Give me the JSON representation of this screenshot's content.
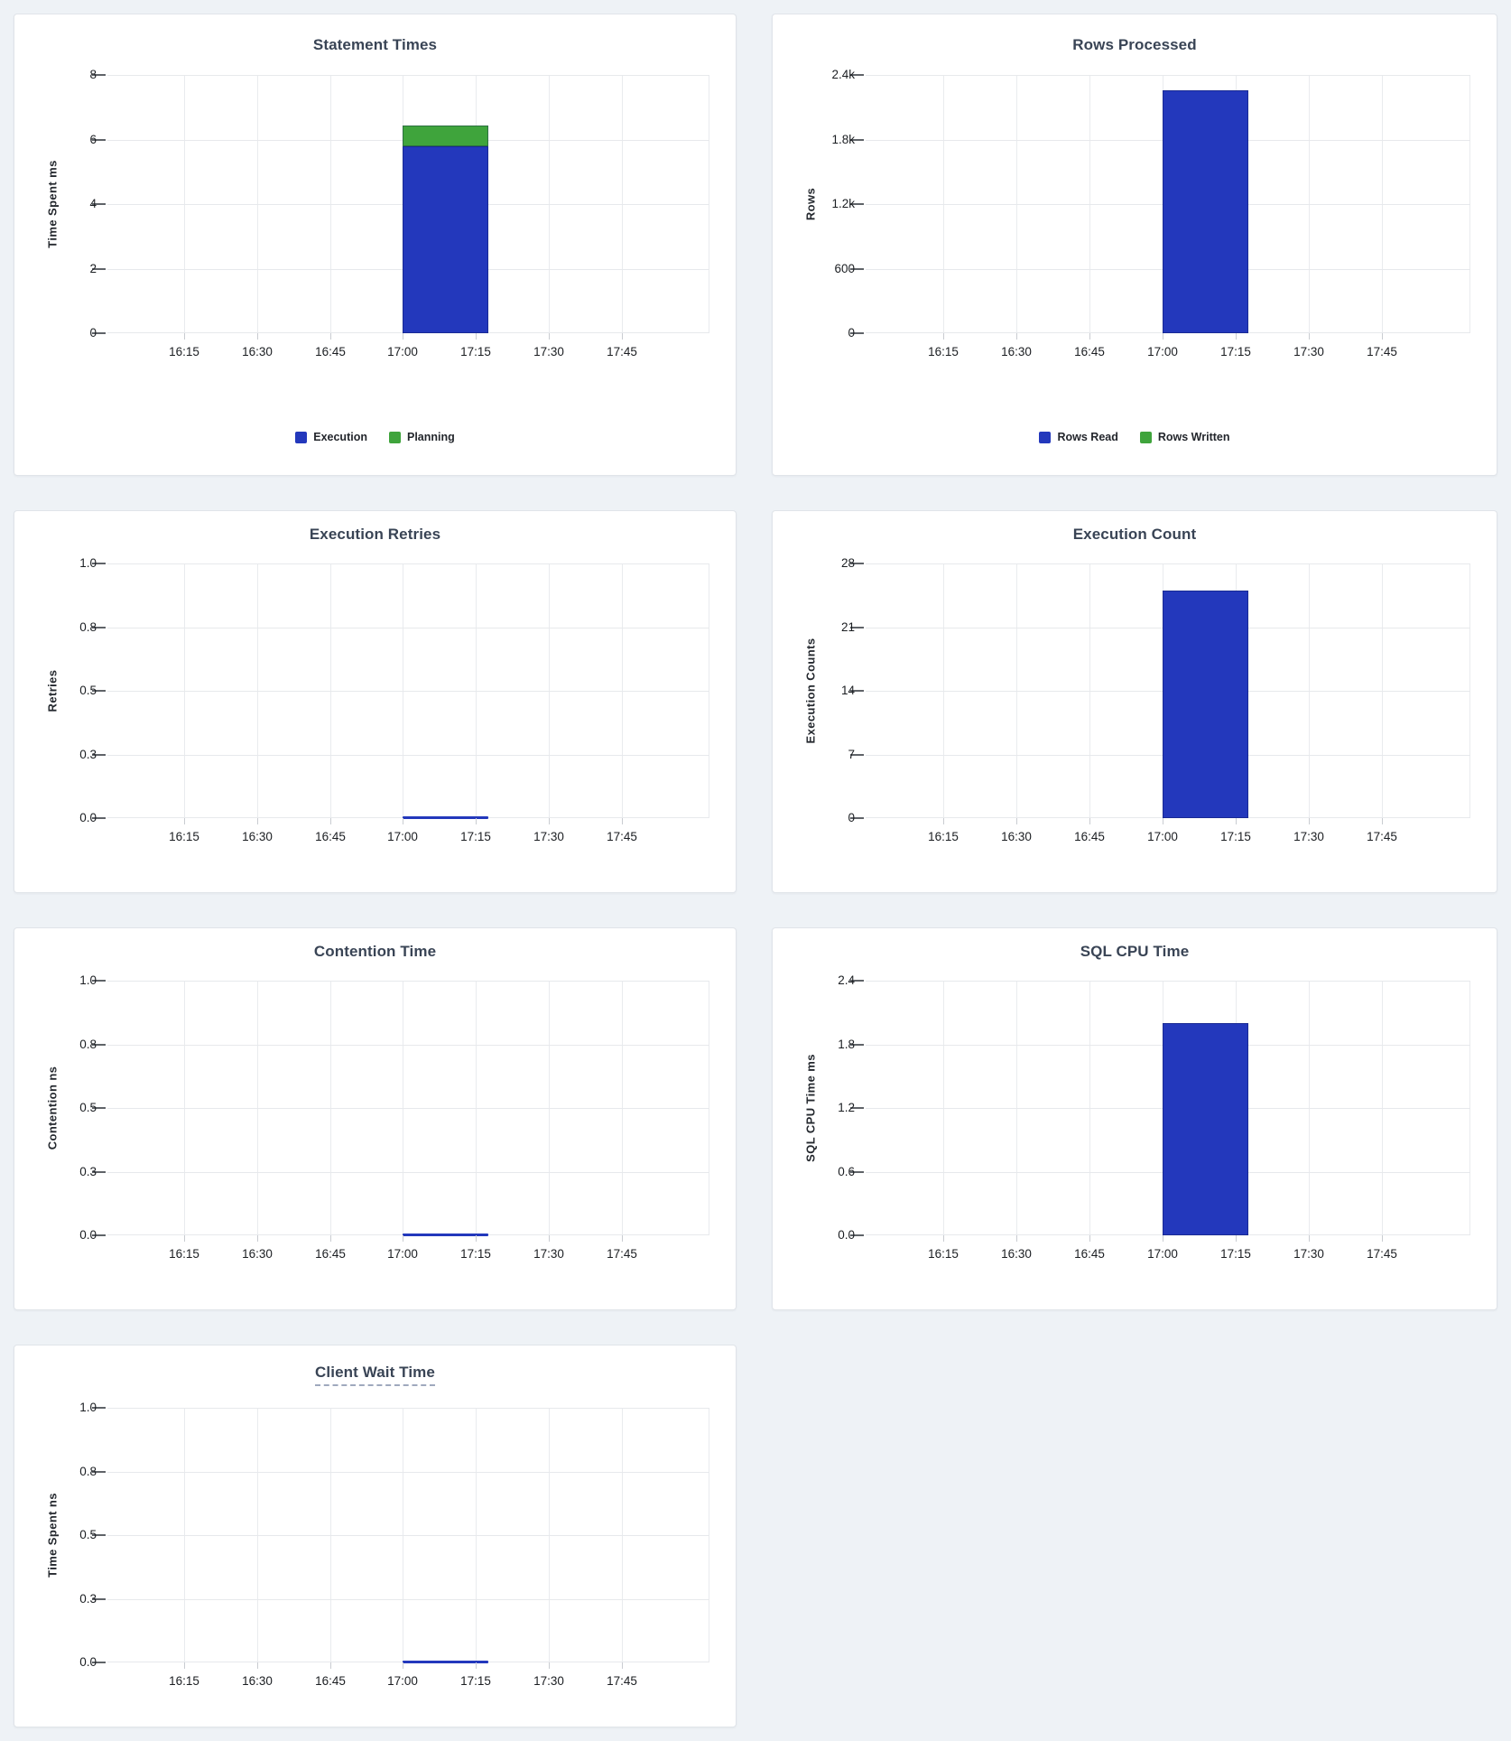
{
  "theme": {
    "page_bg": "#eef2f6",
    "panel_bg": "#ffffff",
    "panel_border": "#e0e4e9",
    "title_color": "#394455",
    "tick_text_color": "#1b1e22",
    "grid_color": "#e7e9ec",
    "bar_blue": "#2338bc",
    "bar_green": "#3fa43c",
    "title_underline_color": "#9fa9bd"
  },
  "chart_data": [
    {
      "type": "bar",
      "title": "Statement Times",
      "ylabel": "Time Spent ms",
      "ylim": [
        0,
        8
      ],
      "yticks": [
        "0",
        "2",
        "4",
        "6",
        "8"
      ],
      "xticks": [
        "16:15",
        "16:30",
        "16:45",
        "17:00",
        "17:15",
        "17:30",
        "17:45"
      ],
      "stacked": true,
      "grid": true,
      "legend_visible": true,
      "legend_position": "bottom",
      "data_interval": {
        "start": "17:00",
        "end": "17:15"
      },
      "series": [
        {
          "name": "Execution",
          "color": "#2338bc",
          "values": [
            5.8
          ]
        },
        {
          "name": "Planning",
          "color": "#3fa43c",
          "values": [
            0.65
          ]
        }
      ]
    },
    {
      "type": "bar",
      "title": "Rows Processed",
      "ylabel": "Rows",
      "ylim": [
        0,
        2400
      ],
      "yticks": [
        "0",
        "600",
        "1.2k",
        "1.8k",
        "2.4k"
      ],
      "xticks": [
        "16:15",
        "16:30",
        "16:45",
        "17:00",
        "17:15",
        "17:30",
        "17:45"
      ],
      "stacked": true,
      "grid": true,
      "legend_visible": true,
      "legend_position": "bottom",
      "data_interval": {
        "start": "17:00",
        "end": "17:15"
      },
      "series": [
        {
          "name": "Rows Read",
          "color": "#2338bc",
          "values": [
            2260
          ]
        },
        {
          "name": "Rows Written",
          "color": "#3fa43c",
          "values": [
            0
          ]
        }
      ]
    },
    {
      "type": "line",
      "title": "Execution Retries",
      "ylabel": "Retries",
      "ylim": [
        0,
        1
      ],
      "yticks": [
        "0.0",
        "0.3",
        "0.5",
        "0.8",
        "1.0"
      ],
      "xticks": [
        "16:15",
        "16:30",
        "16:45",
        "17:00",
        "17:15",
        "17:30",
        "17:45"
      ],
      "grid": true,
      "legend_visible": false,
      "data_interval": {
        "start": "17:00",
        "end": "17:15"
      },
      "series": [
        {
          "color": "#2338bc",
          "values": [
            0
          ]
        }
      ]
    },
    {
      "type": "bar",
      "title": "Execution Count",
      "ylabel": "Execution Counts",
      "ylim": [
        0,
        28
      ],
      "yticks": [
        "0",
        "7",
        "14",
        "21",
        "28"
      ],
      "xticks": [
        "16:15",
        "16:30",
        "16:45",
        "17:00",
        "17:15",
        "17:30",
        "17:45"
      ],
      "grid": true,
      "legend_visible": false,
      "data_interval": {
        "start": "17:00",
        "end": "17:15"
      },
      "series": [
        {
          "color": "#2338bc",
          "values": [
            25
          ]
        }
      ]
    },
    {
      "type": "line",
      "title": "Contention Time",
      "ylabel": "Contention ns",
      "ylim": [
        0,
        1
      ],
      "yticks": [
        "0.0",
        "0.3",
        "0.5",
        "0.8",
        "1.0"
      ],
      "xticks": [
        "16:15",
        "16:30",
        "16:45",
        "17:00",
        "17:15",
        "17:30",
        "17:45"
      ],
      "grid": true,
      "legend_visible": false,
      "data_interval": {
        "start": "17:00",
        "end": "17:15"
      },
      "series": [
        {
          "color": "#2338bc",
          "values": [
            0
          ]
        }
      ]
    },
    {
      "type": "bar",
      "title": "SQL CPU Time",
      "ylabel": "SQL CPU Time ms",
      "ylim": [
        0,
        2.4
      ],
      "yticks": [
        "0.0",
        "0.6",
        "1.2",
        "1.8",
        "2.4"
      ],
      "xticks": [
        "16:15",
        "16:30",
        "16:45",
        "17:00",
        "17:15",
        "17:30",
        "17:45"
      ],
      "grid": true,
      "legend_visible": false,
      "data_interval": {
        "start": "17:00",
        "end": "17:15"
      },
      "series": [
        {
          "color": "#2338bc",
          "values": [
            2.0
          ]
        }
      ]
    },
    {
      "type": "line",
      "title": "Client Wait Time",
      "title_underlined": true,
      "ylabel": "Time Spent ns",
      "ylim": [
        0,
        1
      ],
      "yticks": [
        "0.0",
        "0.3",
        "0.5",
        "0.8",
        "1.0"
      ],
      "xticks": [
        "16:15",
        "16:30",
        "16:45",
        "17:00",
        "17:15",
        "17:30",
        "17:45"
      ],
      "grid": true,
      "legend_visible": false,
      "data_interval": {
        "start": "17:00",
        "end": "17:15"
      },
      "series": [
        {
          "color": "#2338bc",
          "values": [
            0
          ]
        }
      ]
    }
  ]
}
